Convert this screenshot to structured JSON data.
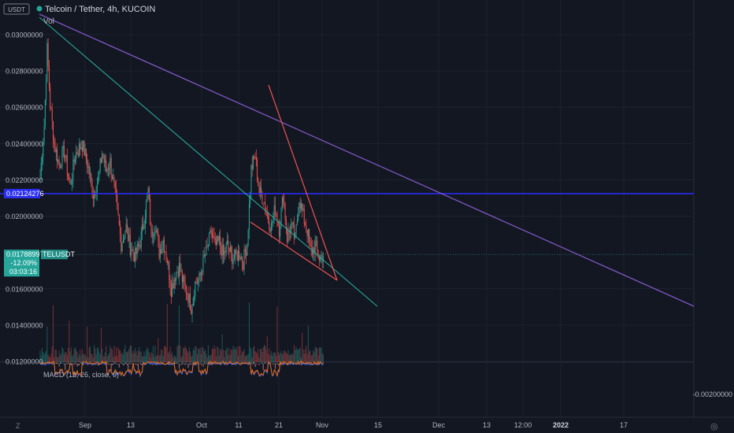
{
  "currency_badge": "USDT",
  "header": {
    "title": "Telcoin / Tether, 4h, KUCOIN",
    "vol_label": "Vol",
    "macd_label": "MACD (12, 26, close, 9)"
  },
  "price_tag": {
    "value": "0.01788997",
    "change": "-12.09%",
    "countdown": "03:03:16",
    "symbol": "TELUSDT"
  },
  "level_tag": "0.02124276",
  "macd_tick": "-0.00200000",
  "bottom": {
    "left_icon": "Z",
    "right_icon": "◎"
  },
  "colors": {
    "up": "#26a69a",
    "down": "#ef5350",
    "level": "#2a2ef0",
    "purple": "#7e57c2",
    "green": "#26a69a",
    "wedge": "#ef5350",
    "bg": "#131722"
  },
  "chart_data": {
    "type": "candlestick",
    "ylim": [
      0.0117,
      0.0308
    ],
    "y_ticks": [
      "0.03000000",
      "0.02800000",
      "0.02600000",
      "0.02400000",
      "0.02200000",
      "0.02000000",
      "0.01600000",
      "0.01400000",
      "0.01200000"
    ],
    "y_tick_values": [
      0.03,
      0.028,
      0.026,
      0.024,
      0.022,
      0.02,
      0.016,
      0.014,
      0.012
    ],
    "x_ticks": [
      "Sep",
      "13",
      "Oct",
      "11",
      "21",
      "Nov",
      "15",
      "Dec",
      "13",
      "12:00",
      "2022",
      "17"
    ],
    "current_price": 0.01788997,
    "horizontal_level": 0.02124276,
    "trendlines": [
      {
        "name": "purple",
        "from": [
          "start",
          0.0306
        ],
        "to": [
          "end",
          0.015
        ]
      },
      {
        "name": "green",
        "from": [
          "start",
          0.0304
        ],
        "to": [
          "Nov 15",
          0.015
        ]
      }
    ],
    "price_path": [
      [
        0,
        0.0222
      ],
      [
        4,
        0.025
      ],
      [
        7,
        0.0292
      ],
      [
        10,
        0.0262
      ],
      [
        14,
        0.024
      ],
      [
        19,
        0.0228
      ],
      [
        24,
        0.0236
      ],
      [
        30,
        0.0216
      ],
      [
        35,
        0.0234
      ],
      [
        42,
        0.024
      ],
      [
        48,
        0.0227
      ],
      [
        53,
        0.0212
      ],
      [
        58,
        0.022
      ],
      [
        62,
        0.0235
      ],
      [
        66,
        0.0225
      ],
      [
        70,
        0.023
      ],
      [
        76,
        0.0208
      ],
      [
        81,
        0.0185
      ],
      [
        86,
        0.0194
      ],
      [
        90,
        0.0183
      ],
      [
        95,
        0.0178
      ],
      [
        100,
        0.0186
      ],
      [
        104,
        0.0198
      ],
      [
        108,
        0.0214
      ],
      [
        111,
        0.019
      ],
      [
        115,
        0.0196
      ],
      [
        119,
        0.018
      ],
      [
        123,
        0.0187
      ],
      [
        127,
        0.0176
      ],
      [
        131,
        0.016
      ],
      [
        135,
        0.0168
      ],
      [
        139,
        0.0172
      ],
      [
        143,
        0.0163
      ],
      [
        147,
        0.0158
      ],
      [
        151,
        0.015
      ],
      [
        155,
        0.0163
      ],
      [
        159,
        0.0165
      ],
      [
        163,
        0.0175
      ],
      [
        167,
        0.0182
      ],
      [
        171,
        0.0191
      ],
      [
        175,
        0.0183
      ],
      [
        179,
        0.0186
      ],
      [
        183,
        0.0178
      ],
      [
        187,
        0.0184
      ],
      [
        191,
        0.0178
      ],
      [
        195,
        0.0177
      ],
      [
        199,
        0.018
      ],
      [
        203,
        0.0175
      ],
      [
        207,
        0.0185
      ],
      [
        211,
        0.0226
      ],
      [
        215,
        0.0233
      ],
      [
        219,
        0.0213
      ],
      [
        223,
        0.021
      ],
      [
        227,
        0.02
      ],
      [
        231,
        0.0194
      ],
      [
        235,
        0.0205
      ],
      [
        239,
        0.0193
      ],
      [
        243,
        0.0212
      ],
      [
        247,
        0.0188
      ],
      [
        251,
        0.0195
      ],
      [
        255,
        0.0187
      ],
      [
        259,
        0.021
      ],
      [
        263,
        0.02
      ],
      [
        267,
        0.0192
      ],
      [
        271,
        0.018
      ],
      [
        275,
        0.0184
      ],
      [
        279,
        0.0177
      ],
      [
        283,
        0.0179
      ]
    ],
    "vol_spike_bars": [
      7,
      13,
      29,
      47,
      61,
      118,
      127,
      139,
      182,
      209,
      227,
      237,
      262,
      268
    ],
    "macd_dip_bars": [
      19,
      25,
      37,
      71,
      79,
      88,
      98,
      139,
      148,
      163,
      215,
      223,
      235
    ]
  }
}
